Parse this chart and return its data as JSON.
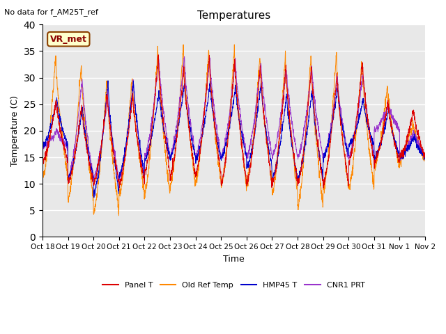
{
  "title": "Temperatures",
  "xlabel": "Time",
  "ylabel": "Temperature (C)",
  "note": "No data for f_AM25T_ref",
  "annotation": "VR_met",
  "ylim": [
    0,
    40
  ],
  "yticks": [
    0,
    5,
    10,
    15,
    20,
    25,
    30,
    35,
    40
  ],
  "x_labels": [
    "Oct 18",
    "Oct 19",
    "Oct 20",
    "Oct 21",
    "Oct 22",
    "Oct 23",
    "Oct 24",
    "Oct 25",
    "Oct 26",
    "Oct 27",
    "Oct 28",
    "Oct 29",
    "Oct 30",
    "Oct 31",
    "Nov 1",
    "Nov 2"
  ],
  "legend_entries": [
    "Panel T",
    "Old Ref Temp",
    "HMP45 T",
    "CNR1 PRT"
  ],
  "colors": {
    "panel_t": "#dd0000",
    "old_ref_temp": "#ff8800",
    "hmp45_t": "#0000cc",
    "cnr1_prt": "#9933cc"
  },
  "background_color": "#e8e8e8",
  "n_days": 15,
  "pts_per_day": 144,
  "day_peak_temps_orange": [
    34,
    32.5,
    29.5,
    30.5,
    35.5,
    36,
    35.5,
    35.5,
    34,
    34.5,
    34.5,
    34.5,
    33.5,
    28.5,
    21.5
  ],
  "day_trough_temps_orange": [
    11,
    7,
    4.5,
    8,
    8,
    9.5,
    10,
    9.5,
    10,
    8,
    5.5,
    9,
    9,
    13,
    14.5
  ],
  "day_peak_temps_red": [
    26,
    25,
    27,
    27,
    34,
    32,
    34,
    33.5,
    32.5,
    32,
    32,
    31,
    33,
    25.5,
    24
  ],
  "day_trough_temps_red": [
    14,
    10,
    10,
    10,
    12,
    11.5,
    12,
    10,
    10,
    10,
    10,
    10,
    14,
    14,
    15
  ],
  "day_peak_temps_blue": [
    26,
    24.5,
    29.5,
    29.5,
    27.5,
    29,
    29,
    28.5,
    29,
    27,
    28,
    28,
    26,
    24,
    19
  ],
  "day_trough_temps_blue": [
    17,
    11,
    8,
    11.5,
    14.5,
    15,
    14.5,
    15,
    13,
    11,
    11,
    15,
    17,
    15,
    15
  ],
  "day_peak_temps_purple": [
    20,
    30,
    27,
    29.5,
    34,
    34,
    34,
    33.5,
    33,
    32,
    32,
    30,
    31,
    25,
    20
  ],
  "day_trough_temps_purple": [
    17,
    11,
    11,
    11,
    15,
    15,
    15,
    15,
    15,
    15,
    15,
    15,
    15,
    20,
    15
  ]
}
